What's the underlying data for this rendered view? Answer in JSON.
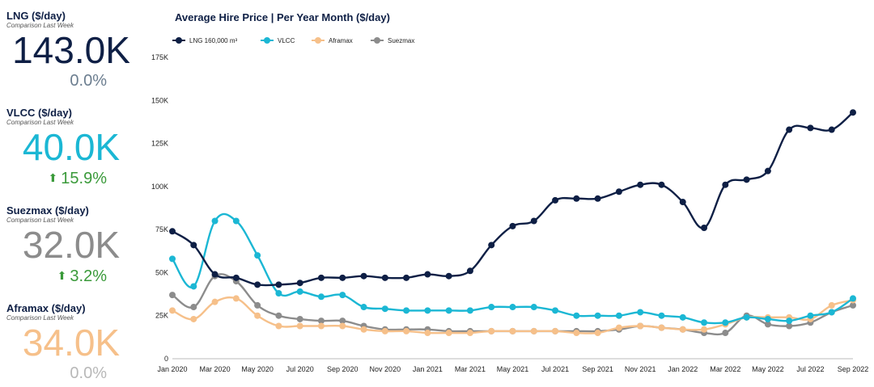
{
  "kpis": {
    "lng": {
      "title": "LNG ($/day)",
      "sub": "Comparison Last Week",
      "value": "143.0K",
      "change": "0.0%",
      "trend": "none"
    },
    "vlcc": {
      "title": "VLCC ($/day)",
      "sub": "Comparison Last Week",
      "value": "40.0K",
      "change": "15.9%",
      "trend": "up"
    },
    "suezmax": {
      "title": "Suezmax ($/day)",
      "sub": "Comparison Last Week",
      "value": "32.0K",
      "change": "3.2%",
      "trend": "up"
    },
    "aframax": {
      "title": "Aframax ($/day)",
      "sub": "Comparison Last Week",
      "value": "34.0K",
      "change": "0.0%",
      "trend": "none"
    }
  },
  "colors": {
    "lng": "#0e1f45",
    "vlcc": "#1bb7d4",
    "aframax": "#f6c08a",
    "suezmax": "#8c8c8c"
  },
  "chart_data": {
    "type": "line",
    "title": "Average Hire Price | Per Year Month ($/day)",
    "xlabel": "",
    "ylabel": "",
    "ylim": [
      0,
      175000
    ],
    "y_ticks": [
      "0",
      "25K",
      "50K",
      "75K",
      "100K",
      "125K",
      "150K",
      "175K"
    ],
    "x_tick_labels": [
      "Jan 2020",
      "Mar 2020",
      "May 2020",
      "Jul 2020",
      "Sep 2020",
      "Nov 2020",
      "Jan 2021",
      "Mar 2021",
      "May 2021",
      "Jul 2021",
      "Sep 2021",
      "Nov 2021",
      "Jan 2022",
      "Mar 2022",
      "May 2022",
      "Jul 2022",
      "Sep 2022"
    ],
    "legend_position": "top-left",
    "grid": false,
    "x": [
      "Jan 2020",
      "Feb 2020",
      "Mar 2020",
      "Apr 2020",
      "May 2020",
      "Jun 2020",
      "Jul 2020",
      "Aug 2020",
      "Sep 2020",
      "Oct 2020",
      "Nov 2020",
      "Dec 2020",
      "Jan 2021",
      "Feb 2021",
      "Mar 2021",
      "Apr 2021",
      "May 2021",
      "Jun 2021",
      "Jul 2021",
      "Aug 2021",
      "Sep 2021",
      "Oct 2021",
      "Nov 2021",
      "Dec 2021",
      "Jan 2022",
      "Feb 2022",
      "Mar 2022",
      "Apr 2022",
      "May 2022",
      "Jun 2022",
      "Jul 2022",
      "Aug 2022",
      "Sep 2022"
    ],
    "series": [
      {
        "name": "LNG 160,000 m³",
        "key": "lng",
        "values": [
          74000,
          66000,
          49000,
          47000,
          43000,
          43000,
          44000,
          47000,
          47000,
          48000,
          47000,
          47000,
          49000,
          48000,
          51000,
          66000,
          77000,
          80000,
          92000,
          93000,
          93000,
          97000,
          101000,
          101000,
          91000,
          76000,
          101000,
          104000,
          109000,
          133000,
          134000,
          133000,
          143000
        ]
      },
      {
        "name": "VLCC",
        "key": "vlcc",
        "values": [
          58000,
          42000,
          80000,
          80000,
          60000,
          38000,
          39000,
          36000,
          37000,
          30000,
          29000,
          28000,
          28000,
          28000,
          28000,
          30000,
          30000,
          30000,
          28000,
          25000,
          25000,
          25000,
          27000,
          25000,
          24000,
          21000,
          21000,
          24000,
          23000,
          22000,
          25000,
          27000,
          35000
        ]
      },
      {
        "name": "Aframax",
        "key": "aframax",
        "values": [
          28000,
          23000,
          33000,
          35000,
          25000,
          19000,
          19000,
          19000,
          19000,
          17000,
          16000,
          16000,
          15000,
          15000,
          15000,
          16000,
          16000,
          16000,
          16000,
          15000,
          15000,
          18000,
          19000,
          18000,
          17000,
          17000,
          20000,
          24000,
          24000,
          24000,
          23000,
          31000,
          34000
        ]
      },
      {
        "name": "Suezmax",
        "key": "suezmax",
        "values": [
          37000,
          30000,
          48000,
          45000,
          31000,
          25000,
          23000,
          22000,
          22000,
          19000,
          17000,
          17000,
          17000,
          16000,
          16000,
          16000,
          16000,
          16000,
          16000,
          16000,
          16000,
          17000,
          19000,
          18000,
          17000,
          15000,
          15000,
          25000,
          20000,
          19000,
          21000,
          27000,
          31000
        ]
      }
    ]
  }
}
